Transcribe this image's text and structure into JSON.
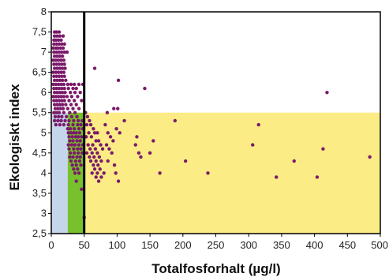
{
  "chart_data": {
    "type": "scatter",
    "xlabel": "Totalfosforhalt (µg/l)",
    "ylabel": "Ekologiskt index",
    "xlim": [
      0,
      500
    ],
    "ylim": [
      2.5,
      8
    ],
    "x_ticks": [
      "0",
      "50",
      "100",
      "150",
      "200",
      "250",
      "300",
      "350",
      "400",
      "450",
      "500"
    ],
    "y_ticks": [
      "2,5",
      "3",
      "3,5",
      "4",
      "4,5",
      "5",
      "5,5",
      "6",
      "6,5",
      "7",
      "7,5",
      "8"
    ],
    "grid": false,
    "threshold_x": 50,
    "regions": [
      {
        "color": "#c5d5ea",
        "x": [
          0,
          25
        ],
        "y": [
          2.5,
          5.5
        ]
      },
      {
        "color": "#77c12c",
        "x": [
          25,
          50
        ],
        "y": [
          2.5,
          5.5
        ]
      },
      {
        "color": "#fbec86",
        "x": [
          50,
          500
        ],
        "y": [
          2.5,
          5.5
        ]
      }
    ],
    "point_color": "#7b1a6a",
    "points": [
      [
        5,
        7.5
      ],
      [
        8,
        7.5
      ],
      [
        12,
        7.5
      ],
      [
        5,
        7.4
      ],
      [
        9,
        7.4
      ],
      [
        13,
        7.4
      ],
      [
        18,
        7.4
      ],
      [
        4,
        7.3
      ],
      [
        7,
        7.3
      ],
      [
        11,
        7.3
      ],
      [
        15,
        7.3
      ],
      [
        4,
        7.2
      ],
      [
        8,
        7.2
      ],
      [
        12,
        7.2
      ],
      [
        16,
        7.2
      ],
      [
        20,
        7.2
      ],
      [
        3,
        7.1
      ],
      [
        7,
        7.1
      ],
      [
        10,
        7.1
      ],
      [
        14,
        7.1
      ],
      [
        18,
        7.1
      ],
      [
        4,
        7.0
      ],
      [
        8,
        7.0
      ],
      [
        12,
        7.0
      ],
      [
        16,
        7.0
      ],
      [
        20,
        7.0
      ],
      [
        24,
        7.0
      ],
      [
        5,
        6.9
      ],
      [
        9,
        6.9
      ],
      [
        13,
        6.9
      ],
      [
        17,
        6.9
      ],
      [
        3,
        6.8
      ],
      [
        7,
        6.8
      ],
      [
        11,
        6.8
      ],
      [
        15,
        6.8
      ],
      [
        19,
        6.8
      ],
      [
        4,
        6.7
      ],
      [
        8,
        6.7
      ],
      [
        12,
        6.7
      ],
      [
        16,
        6.7
      ],
      [
        20,
        6.7
      ],
      [
        5,
        6.6
      ],
      [
        9,
        6.6
      ],
      [
        13,
        6.6
      ],
      [
        17,
        6.6
      ],
      [
        21,
        6.6
      ],
      [
        3,
        6.5
      ],
      [
        7,
        6.5
      ],
      [
        11,
        6.5
      ],
      [
        15,
        6.5
      ],
      [
        19,
        6.5
      ],
      [
        4,
        6.4
      ],
      [
        8,
        6.4
      ],
      [
        12,
        6.4
      ],
      [
        16,
        6.4
      ],
      [
        20,
        6.4
      ],
      [
        5,
        6.3
      ],
      [
        9,
        6.3
      ],
      [
        13,
        6.3
      ],
      [
        17,
        6.3
      ],
      [
        22,
        6.3
      ],
      [
        3,
        6.2
      ],
      [
        7,
        6.2
      ],
      [
        11,
        6.2
      ],
      [
        15,
        6.2
      ],
      [
        19,
        6.2
      ],
      [
        25,
        6.2
      ],
      [
        30,
        6.2
      ],
      [
        35,
        6.2
      ],
      [
        42,
        6.2
      ],
      [
        48,
        6.2
      ],
      [
        4,
        6.1
      ],
      [
        8,
        6.1
      ],
      [
        12,
        6.1
      ],
      [
        16,
        6.1
      ],
      [
        20,
        6.1
      ],
      [
        26,
        6.1
      ],
      [
        33,
        6.1
      ],
      [
        38,
        6.1
      ],
      [
        5,
        6.0
      ],
      [
        9,
        6.0
      ],
      [
        13,
        6.0
      ],
      [
        17,
        6.0
      ],
      [
        21,
        6.0
      ],
      [
        29,
        6.0
      ],
      [
        36,
        6.0
      ],
      [
        44,
        6.0
      ],
      [
        3,
        5.9
      ],
      [
        7,
        5.9
      ],
      [
        11,
        5.9
      ],
      [
        15,
        5.9
      ],
      [
        19,
        5.9
      ],
      [
        24,
        5.9
      ],
      [
        31,
        5.9
      ],
      [
        40,
        5.9
      ],
      [
        4,
        5.8
      ],
      [
        8,
        5.8
      ],
      [
        12,
        5.8
      ],
      [
        16,
        5.8
      ],
      [
        20,
        5.8
      ],
      [
        27,
        5.8
      ],
      [
        35,
        5.8
      ],
      [
        46,
        5.8
      ],
      [
        5,
        5.7
      ],
      [
        9,
        5.7
      ],
      [
        13,
        5.7
      ],
      [
        17,
        5.7
      ],
      [
        22,
        5.7
      ],
      [
        30,
        5.7
      ],
      [
        38,
        5.7
      ],
      [
        6,
        5.6
      ],
      [
        10,
        5.6
      ],
      [
        14,
        5.6
      ],
      [
        18,
        5.6
      ],
      [
        25,
        5.6
      ],
      [
        33,
        5.6
      ],
      [
        42,
        5.6
      ],
      [
        4,
        5.5
      ],
      [
        8,
        5.5
      ],
      [
        12,
        5.5
      ],
      [
        19,
        5.5
      ],
      [
        28,
        5.5
      ],
      [
        36,
        5.5
      ],
      [
        6,
        5.4
      ],
      [
        11,
        5.4
      ],
      [
        16,
        5.4
      ],
      [
        23,
        5.4
      ],
      [
        31,
        5.4
      ],
      [
        39,
        5.4
      ],
      [
        5,
        5.3
      ],
      [
        10,
        5.3
      ],
      [
        15,
        5.3
      ],
      [
        21,
        5.3
      ],
      [
        27,
        5.3
      ],
      [
        34,
        5.3
      ],
      [
        41,
        5.3
      ],
      [
        47,
        5.3
      ],
      [
        7,
        5.2
      ],
      [
        13,
        5.2
      ],
      [
        19,
        5.2
      ],
      [
        26,
        5.2
      ],
      [
        33,
        5.2
      ],
      [
        40,
        5.2
      ],
      [
        45,
        5.2
      ],
      [
        25,
        5.1
      ],
      [
        29,
        5.1
      ],
      [
        35,
        5.1
      ],
      [
        42,
        5.1
      ],
      [
        48,
        5.1
      ],
      [
        26,
        5.0
      ],
      [
        30,
        5.0
      ],
      [
        34,
        5.0
      ],
      [
        38,
        5.0
      ],
      [
        43,
        5.0
      ],
      [
        27,
        4.9
      ],
      [
        32,
        4.9
      ],
      [
        37,
        4.9
      ],
      [
        41,
        4.9
      ],
      [
        46,
        4.9
      ],
      [
        28,
        4.8
      ],
      [
        33,
        4.8
      ],
      [
        39,
        4.8
      ],
      [
        44,
        4.8
      ],
      [
        26,
        4.7
      ],
      [
        31,
        4.7
      ],
      [
        36,
        4.7
      ],
      [
        42,
        4.7
      ],
      [
        48,
        4.7
      ],
      [
        27,
        4.6
      ],
      [
        34,
        4.6
      ],
      [
        40,
        4.6
      ],
      [
        45,
        4.6
      ],
      [
        29,
        4.5
      ],
      [
        35,
        4.5
      ],
      [
        41,
        4.5
      ],
      [
        47,
        4.5
      ],
      [
        28,
        4.4
      ],
      [
        33,
        4.4
      ],
      [
        39,
        4.4
      ],
      [
        44,
        4.4
      ],
      [
        30,
        4.3
      ],
      [
        37,
        4.3
      ],
      [
        43,
        4.3
      ],
      [
        32,
        4.2
      ],
      [
        38,
        4.2
      ],
      [
        45,
        4.2
      ],
      [
        34,
        4.1
      ],
      [
        40,
        4.1
      ],
      [
        36,
        4.0
      ],
      [
        42,
        4.0
      ],
      [
        38,
        3.8
      ],
      [
        46,
        3.6
      ],
      [
        50,
        2.9
      ],
      [
        52,
        5.5
      ],
      [
        55,
        5.4
      ],
      [
        58,
        5.3
      ],
      [
        54,
        5.2
      ],
      [
        60,
        5.2
      ],
      [
        64,
        5.1
      ],
      [
        57,
        5.0
      ],
      [
        66,
        5.0
      ],
      [
        70,
        5.0
      ],
      [
        53,
        4.9
      ],
      [
        61,
        4.9
      ],
      [
        68,
        4.8
      ],
      [
        72,
        4.8
      ],
      [
        56,
        4.7
      ],
      [
        63,
        4.7
      ],
      [
        75,
        4.7
      ],
      [
        59,
        4.6
      ],
      [
        67,
        4.6
      ],
      [
        78,
        4.6
      ],
      [
        54,
        4.5
      ],
      [
        62,
        4.5
      ],
      [
        70,
        4.5
      ],
      [
        58,
        4.4
      ],
      [
        65,
        4.4
      ],
      [
        73,
        4.4
      ],
      [
        60,
        4.3
      ],
      [
        68,
        4.3
      ],
      [
        76,
        4.3
      ],
      [
        64,
        4.2
      ],
      [
        71,
        4.2
      ],
      [
        66,
        4.1
      ],
      [
        74,
        4.1
      ],
      [
        62,
        4.0
      ],
      [
        70,
        4.0
      ],
      [
        80,
        4.0
      ],
      [
        68,
        3.9
      ],
      [
        76,
        3.9
      ],
      [
        72,
        3.8
      ],
      [
        82,
        5.2
      ],
      [
        86,
        5.0
      ],
      [
        90,
        4.9
      ],
      [
        84,
        4.7
      ],
      [
        88,
        4.6
      ],
      [
        94,
        4.8
      ],
      [
        92,
        4.5
      ],
      [
        86,
        4.3
      ],
      [
        96,
        4.2
      ],
      [
        98,
        4.0
      ],
      [
        102,
        3.8
      ],
      [
        85,
        5.5
      ],
      [
        99,
        5.1
      ],
      [
        104,
        5.0
      ],
      [
        111,
        5.3
      ],
      [
        66,
        6.6
      ],
      [
        95,
        5.6
      ],
      [
        101,
        5.6
      ],
      [
        102,
        6.3
      ],
      [
        142,
        6.1
      ],
      [
        130,
        4.9
      ],
      [
        128,
        4.7
      ],
      [
        133,
        4.5
      ],
      [
        136,
        4.4
      ],
      [
        155,
        4.8
      ],
      [
        150,
        4.5
      ],
      [
        165,
        4.0
      ],
      [
        188,
        5.3
      ],
      [
        204,
        4.3
      ],
      [
        238,
        4.0
      ],
      [
        306,
        4.7
      ],
      [
        315,
        5.2
      ],
      [
        342,
        3.9
      ],
      [
        369,
        4.3
      ],
      [
        404,
        3.9
      ],
      [
        413,
        4.6
      ],
      [
        419,
        6.0
      ],
      [
        484,
        4.4
      ]
    ]
  }
}
